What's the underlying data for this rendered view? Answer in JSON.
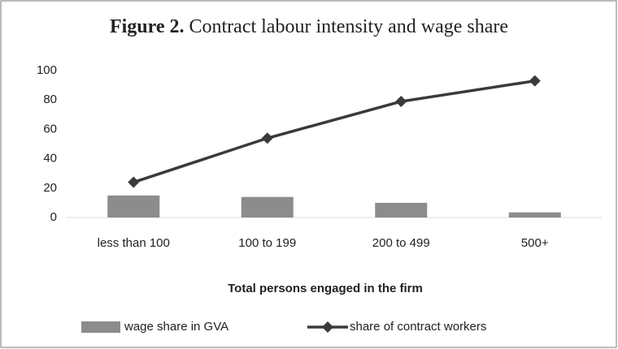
{
  "chart_data": {
    "type": "bar_line",
    "title_label": "Figure 2.",
    "title": "Contract labour intensity and wage share",
    "x_label": "Total persons engaged in the firm",
    "categories": [
      "less than 100",
      "100 to 199",
      "200 to 499",
      "500+"
    ],
    "series": [
      {
        "name": "wage share in GVA",
        "type": "bar",
        "color": "#8c8c8c",
        "values": [
          15,
          14,
          10,
          3.5
        ]
      },
      {
        "name": "share of contract workers",
        "type": "line",
        "color": "#3a3a3a",
        "values": [
          24,
          54,
          79,
          93
        ]
      }
    ],
    "ylim": [
      0,
      100
    ],
    "yticks": [
      0,
      20,
      40,
      60,
      80,
      100
    ],
    "grid": false,
    "legend": "bottom"
  }
}
